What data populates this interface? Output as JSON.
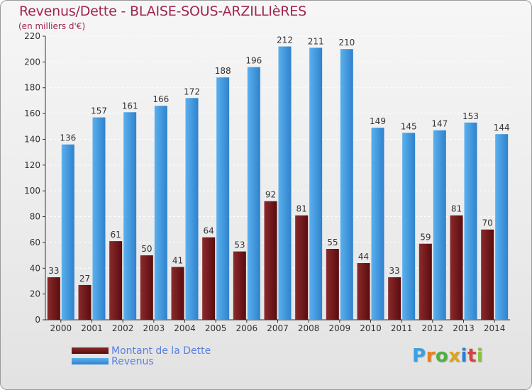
{
  "header": {
    "title": "Revenus/Dette - BLAISE-SOUS-ARZILLIèRES",
    "subtitle": "(en milliers d'€)"
  },
  "colors": {
    "dette": "#6e1416",
    "dette_light": "#8a2a2c",
    "revenus": "#3d8fd6",
    "revenus_light": "#5ab0ee",
    "title": "#a0254e",
    "legend_text": "#5a7fe0"
  },
  "chart_data": {
    "type": "bar",
    "categories": [
      "2000",
      "2001",
      "2002",
      "2003",
      "2004",
      "2005",
      "2006",
      "2007",
      "2008",
      "2009",
      "2010",
      "2011",
      "2012",
      "2013",
      "2014"
    ],
    "series": [
      {
        "name": "Montant de la Dette",
        "values": [
          33,
          27,
          61,
          50,
          41,
          64,
          53,
          92,
          81,
          55,
          44,
          33,
          59,
          81,
          70
        ]
      },
      {
        "name": "Revenus",
        "values": [
          136,
          157,
          161,
          166,
          172,
          188,
          196,
          212,
          211,
          210,
          149,
          145,
          147,
          153,
          144
        ]
      }
    ],
    "ylim": [
      0,
      220
    ],
    "yticks": [
      0,
      20,
      40,
      60,
      80,
      100,
      120,
      140,
      160,
      180,
      200,
      220
    ],
    "grid": true,
    "legend_position": "bottom-left"
  },
  "legend": {
    "items": [
      {
        "label": "Montant de la Dette"
      },
      {
        "label": "Revenus"
      }
    ]
  },
  "logo": {
    "letters": [
      "P",
      "r",
      "o",
      "x",
      "i",
      "t",
      "i"
    ],
    "colors": [
      "#3aa0e0",
      "#e87f1a",
      "#4fb040",
      "#e0a41a",
      "#2a7fd0",
      "#d94040",
      "#8ac040"
    ]
  }
}
